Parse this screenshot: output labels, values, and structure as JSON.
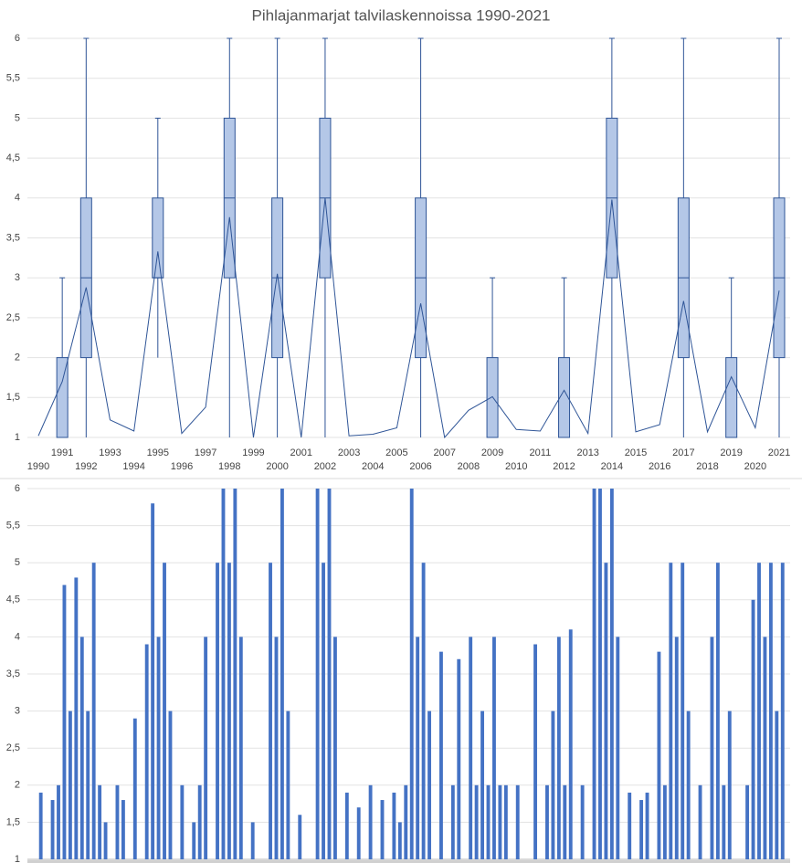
{
  "chart_data": [
    {
      "type": "box",
      "title": "Pihlajanmarjat talvilaskennoissa 1990-2021",
      "categories": [
        "1990",
        "1991",
        "1992",
        "1993",
        "1994",
        "1995",
        "1996",
        "1997",
        "1998",
        "1999",
        "2000",
        "2001",
        "2002",
        "2003",
        "2004",
        "2005",
        "2006",
        "2007",
        "2008",
        "2009",
        "2010",
        "2011",
        "2012",
        "2013",
        "2014",
        "2015",
        "2016",
        "2017",
        "2018",
        "2019",
        "2020",
        "2021"
      ],
      "min": [
        null,
        1,
        1,
        null,
        null,
        2,
        null,
        null,
        1,
        null,
        1,
        null,
        1,
        null,
        null,
        null,
        1,
        null,
        null,
        1,
        null,
        null,
        1,
        null,
        1,
        null,
        null,
        1,
        null,
        1,
        null,
        1
      ],
      "q1": [
        null,
        1,
        2,
        null,
        null,
        3,
        null,
        null,
        3,
        null,
        2,
        null,
        3,
        null,
        null,
        null,
        2,
        null,
        null,
        1,
        null,
        null,
        1,
        null,
        3,
        null,
        null,
        2,
        null,
        1,
        null,
        2
      ],
      "median": [
        null,
        1,
        3,
        null,
        null,
        3,
        null,
        null,
        4,
        null,
        3,
        null,
        4,
        null,
        null,
        null,
        3,
        null,
        null,
        1,
        null,
        null,
        1,
        null,
        4,
        null,
        null,
        3,
        null,
        1,
        null,
        3
      ],
      "q3": [
        null,
        2,
        4,
        null,
        null,
        4,
        null,
        null,
        5,
        null,
        4,
        null,
        5,
        null,
        null,
        null,
        4,
        null,
        null,
        2,
        null,
        null,
        2,
        null,
        5,
        null,
        null,
        4,
        null,
        2,
        null,
        4
      ],
      "max": [
        null,
        3,
        6,
        null,
        null,
        5,
        null,
        null,
        6,
        null,
        6,
        null,
        6,
        null,
        null,
        null,
        6,
        null,
        null,
        3,
        null,
        null,
        3,
        null,
        6,
        null,
        null,
        6,
        null,
        3,
        null,
        6
      ],
      "mean": [
        1.02,
        1.7,
        2.88,
        1.22,
        1.08,
        3.33,
        1.05,
        1.38,
        3.76,
        1.0,
        3.05,
        1.0,
        4.0,
        1.02,
        1.04,
        1.12,
        2.68,
        1.0,
        1.34,
        1.51,
        1.1,
        1.08,
        1.59,
        1.05,
        3.98,
        1.07,
        1.16,
        2.71,
        1.07,
        1.76,
        1.12,
        2.84
      ],
      "color": "#2f5597",
      "fill": "#b4c7e7",
      "ylim": [
        1,
        6
      ],
      "yticks": [
        1,
        {
          "value": 1.5,
          "label": "1,5"
        },
        2,
        {
          "value": 2.5,
          "label": "2,5"
        },
        3,
        {
          "value": 3.5,
          "label": "3,5"
        },
        4,
        {
          "value": 4.5,
          "label": "4,5"
        },
        5,
        {
          "value": 5.5,
          "label": "5,5"
        },
        6
      ],
      "grid": true
    },
    {
      "type": "bar",
      "values": [
        1,
        1.9,
        1,
        1.8,
        2,
        4.7,
        3,
        4.8,
        4,
        3,
        5,
        2,
        1.5,
        1,
        2,
        1.8,
        1,
        2.9,
        1,
        3.9,
        5.8,
        4,
        5,
        3,
        1,
        2,
        1,
        1.5,
        2,
        4,
        1,
        5,
        6,
        5,
        6,
        4,
        1,
        1.5,
        1,
        1,
        5,
        4,
        6,
        3,
        1,
        1.6,
        1,
        1,
        6,
        5,
        6,
        4,
        1,
        1.9,
        1,
        1.7,
        1,
        2,
        1,
        1.8,
        1,
        1.9,
        1.5,
        2,
        6,
        4,
        5,
        3,
        1,
        3.8,
        1,
        2,
        3.7,
        1,
        4,
        2,
        3,
        2,
        4,
        2,
        2,
        1,
        2,
        1,
        1,
        3.9,
        1,
        2,
        3,
        4,
        2,
        4.1,
        1,
        2,
        1,
        6,
        6,
        5,
        6,
        4,
        1,
        1.9,
        1,
        1.8,
        1.9,
        1,
        3.8,
        2,
        5,
        4,
        5,
        3,
        1,
        2,
        1,
        4,
        5,
        2,
        3,
        1,
        1,
        2,
        4.5,
        5,
        4,
        5,
        3,
        5
      ],
      "color": "#4472c4",
      "ylim": [
        1,
        6
      ],
      "yticks": [
        1,
        {
          "value": 1.5,
          "label": "1,5"
        },
        2,
        {
          "value": 2.5,
          "label": "2,5"
        },
        3,
        {
          "value": 3.5,
          "label": "3,5"
        },
        4,
        {
          "value": 4.5,
          "label": "4,5"
        },
        5,
        {
          "value": 5.5,
          "label": "5,5"
        },
        6
      ],
      "grid": true
    }
  ]
}
